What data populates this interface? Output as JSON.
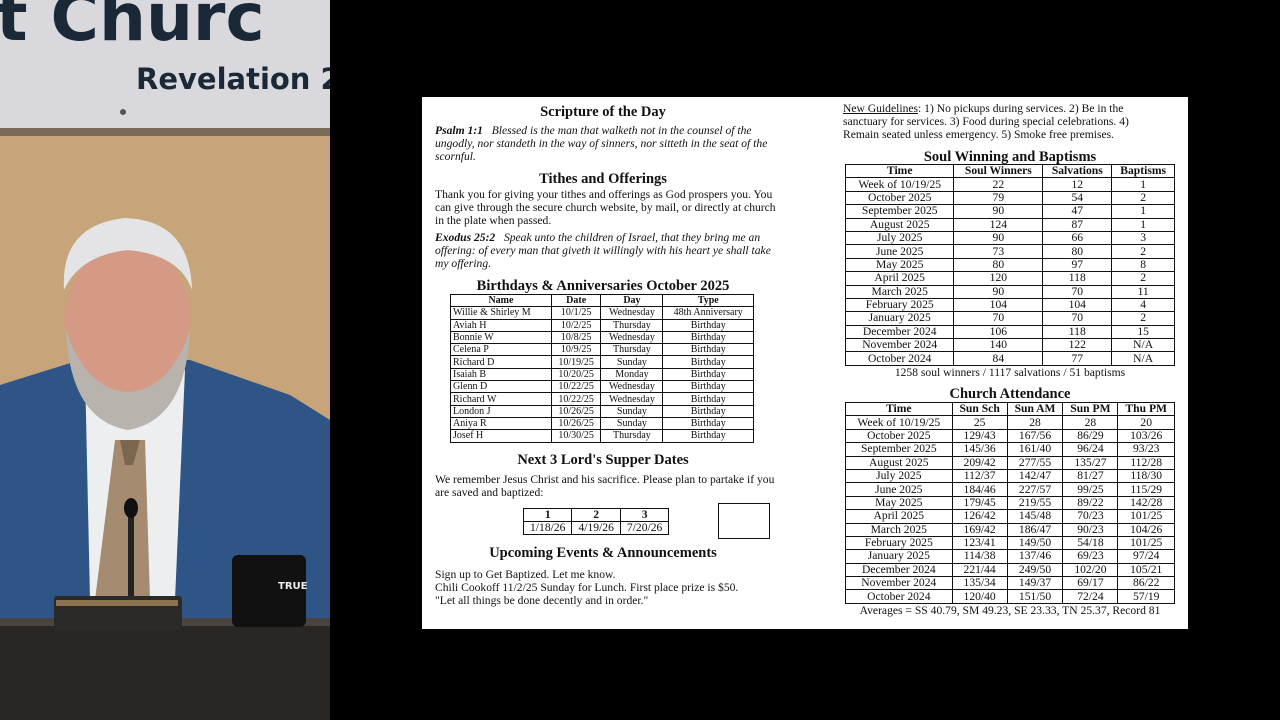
{
  "video": {
    "banner_line1": "t Churc",
    "banner_line2": "Revelation 2",
    "mug_text": "TRUE"
  },
  "bulletin": {
    "scripture": {
      "title": "Scripture of the Day",
      "ref": "Psalm 1:1",
      "text": "Blessed is the man that walketh not in the counsel of the ungodly, nor standeth in the way of sinners, nor sitteth in the seat of the scornful."
    },
    "tithes": {
      "title": "Tithes and Offerings",
      "text": "Thank you for giving your tithes and offerings as God prospers you. You can give through the secure church website, by mail, or directly at church in the plate when passed.",
      "ref": "Exodus 25:2",
      "verse": "Speak unto the children of Israel, that they bring me an offering: of every man that giveth it willingly with his heart ye shall take my offering."
    },
    "birthdays": {
      "title": "Birthdays & Anniversaries October 2025",
      "columns": [
        "Name",
        "Date",
        "Day",
        "Type"
      ],
      "rows": [
        [
          "Willie & Shirley M",
          "10/1/25",
          "Wednesday",
          "48th Anniversary"
        ],
        [
          "Aviah H",
          "10/2/25",
          "Thursday",
          "Birthday"
        ],
        [
          "Bonnie W",
          "10/8/25",
          "Wednesday",
          "Birthday"
        ],
        [
          "Celena P",
          "10/9/25",
          "Thursday",
          "Birthday"
        ],
        [
          "Richard D",
          "10/19/25",
          "Sunday",
          "Birthday"
        ],
        [
          "Isaiah B",
          "10/20/25",
          "Monday",
          "Birthday"
        ],
        [
          "Glenn D",
          "10/22/25",
          "Wednesday",
          "Birthday"
        ],
        [
          "Richard W",
          "10/22/25",
          "Wednesday",
          "Birthday"
        ],
        [
          "London J",
          "10/26/25",
          "Sunday",
          "Birthday"
        ],
        [
          "Aniya R",
          "10/26/25",
          "Sunday",
          "Birthday"
        ],
        [
          "Josef H",
          "10/30/25",
          "Thursday",
          "Birthday"
        ]
      ]
    },
    "supper": {
      "title": "Next 3 Lord's Supper Dates",
      "text": "We remember Jesus Christ and his sacrifice. Please plan to partake if you are saved and baptized:",
      "columns": [
        "1",
        "2",
        "3"
      ],
      "dates": [
        "1/18/26",
        "4/19/26",
        "7/20/26"
      ]
    },
    "events": {
      "title": "Upcoming Events & Announcements",
      "lines": [
        "Sign up to Get Baptized. Let me know.",
        "Chili Cookoff 11/2/25 Sunday for Lunch. First place prize is $50.",
        "\"Let all things be done decently and in order.\""
      ]
    },
    "guidelines": {
      "label": "New Guidelines",
      "text": ": 1) No pickups during services. 2) Be in the sanctuary for services. 3) Food during special celebrations. 4) Remain seated unless emergency. 5) Smoke free premises."
    },
    "soul_winning": {
      "title": "Soul Winning and Baptisms",
      "columns": [
        "Time",
        "Soul Winners",
        "Salvations",
        "Baptisms"
      ],
      "rows": [
        [
          "Week of 10/19/25",
          "22",
          "12",
          "1"
        ],
        [
          "October 2025",
          "79",
          "54",
          "2"
        ],
        [
          "September 2025",
          "90",
          "47",
          "1"
        ],
        [
          "August 2025",
          "124",
          "87",
          "1"
        ],
        [
          "July 2025",
          "90",
          "66",
          "3"
        ],
        [
          "June 2025",
          "73",
          "80",
          "2"
        ],
        [
          "May 2025",
          "80",
          "97",
          "8"
        ],
        [
          "April 2025",
          "120",
          "118",
          "2"
        ],
        [
          "March 2025",
          "90",
          "70",
          "11"
        ],
        [
          "February 2025",
          "104",
          "104",
          "4"
        ],
        [
          "January 2025",
          "70",
          "70",
          "2"
        ],
        [
          "December 2024",
          "106",
          "118",
          "15"
        ],
        [
          "November 2024",
          "140",
          "122",
          "N/A"
        ],
        [
          "October 2024",
          "84",
          "77",
          "N/A"
        ]
      ],
      "summary": "1258 soul winners / 1117 salvations / 51 baptisms"
    },
    "attendance": {
      "title": "Church Attendance",
      "columns": [
        "Time",
        "Sun Sch",
        "Sun AM",
        "Sun PM",
        "Thu PM"
      ],
      "rows": [
        [
          "Week of 10/19/25",
          "25",
          "28",
          "28",
          "20"
        ],
        [
          "October 2025",
          "129/43",
          "167/56",
          "86/29",
          "103/26"
        ],
        [
          "September 2025",
          "145/36",
          "161/40",
          "96/24",
          "93/23"
        ],
        [
          "August 2025",
          "209/42",
          "277/55",
          "135/27",
          "112/28"
        ],
        [
          "July 2025",
          "112/37",
          "142/47",
          "81/27",
          "118/30"
        ],
        [
          "June 2025",
          "184/46",
          "227/57",
          "99/25",
          "115/29"
        ],
        [
          "May 2025",
          "179/45",
          "219/55",
          "89/22",
          "142/28"
        ],
        [
          "April 2025",
          "126/42",
          "145/48",
          "70/23",
          "101/25"
        ],
        [
          "March 2025",
          "169/42",
          "186/47",
          "90/23",
          "104/26"
        ],
        [
          "February 2025",
          "123/41",
          "149/50",
          "54/18",
          "101/25"
        ],
        [
          "January 2025",
          "114/38",
          "137/46",
          "69/23",
          "97/24"
        ],
        [
          "December 2024",
          "221/44",
          "249/50",
          "102/20",
          "105/21"
        ],
        [
          "November 2024",
          "135/34",
          "149/37",
          "69/17",
          "86/22"
        ],
        [
          "October 2024",
          "120/40",
          "151/50",
          "72/24",
          "57/19"
        ]
      ],
      "averages": "Averages = SS 40.79, SM 49.23, SE 23.33, TN 25.37, Record 81"
    }
  }
}
